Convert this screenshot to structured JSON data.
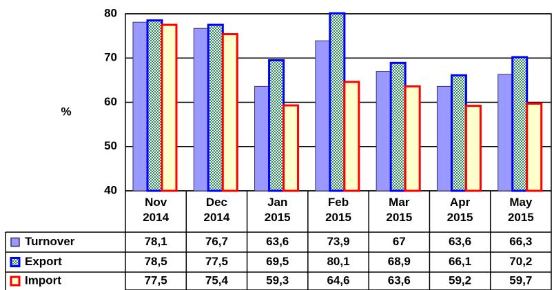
{
  "chart_data": {
    "type": "bar",
    "y_label": "%",
    "categories": [
      "Nov 2014",
      "Dec 2014",
      "Jan 2015",
      "Feb 2015",
      "Mar 2015",
      "Apr 2015",
      "May 2015"
    ],
    "series": [
      {
        "name": "Turnover",
        "color": "#9999ff",
        "values": [
          78.1,
          76.7,
          63.6,
          73.9,
          67,
          63.6,
          66.3
        ],
        "value_labels": [
          "78,1",
          "76,7",
          "63,6",
          "73,9",
          "67",
          "63,6",
          "66,3"
        ]
      },
      {
        "name": "Export",
        "color": "#0000ff",
        "values": [
          78.5,
          77.5,
          69.5,
          80.1,
          68.9,
          66.1,
          70.2
        ],
        "value_labels": [
          "78,5",
          "77,5",
          "69,5",
          "80,1",
          "68,9",
          "66,1",
          "70,2"
        ]
      },
      {
        "name": "Import",
        "color": "#ff0000",
        "values": [
          77.5,
          75.4,
          59.3,
          64.6,
          63.6,
          59.2,
          59.7
        ],
        "value_labels": [
          "77,5",
          "75,4",
          "59,3",
          "64,6",
          "63,6",
          "59,2",
          "59,7"
        ]
      }
    ],
    "ylim": [
      40,
      80
    ],
    "yticks": [
      40,
      50,
      60,
      70,
      80
    ],
    "grid": true
  }
}
